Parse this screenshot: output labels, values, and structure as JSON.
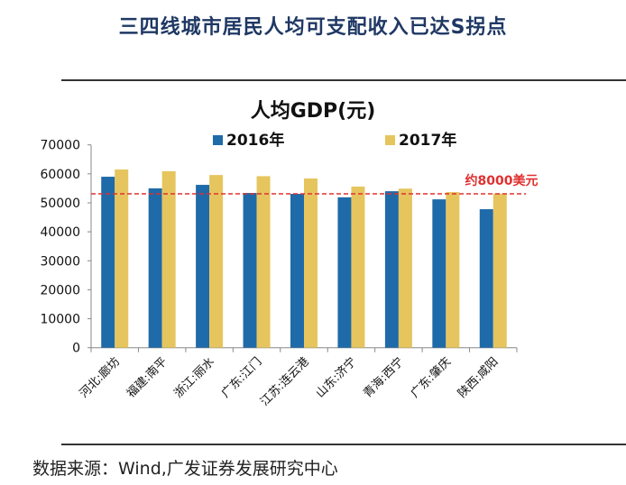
{
  "header": {
    "title": "三四线城市居民人均可支配收入已达S拐点"
  },
  "footer": {
    "source": "数据来源：Wind,广发证券发展研究中心"
  },
  "chart_data": {
    "type": "bar",
    "title": "人均GDP(元)",
    "categories": [
      "河北:廊坊",
      "福建:南平",
      "浙江:丽水",
      "广东:江门",
      "江苏:连云港",
      "山东:济宁",
      "青海:西宁",
      "广东:肇庆",
      "陕西:咸阳"
    ],
    "series": [
      {
        "name": "2016年",
        "color": "#1f6aa8",
        "values": [
          59000,
          55000,
          56200,
          53400,
          53100,
          51900,
          54000,
          51200,
          47800
        ]
      },
      {
        "name": "2017年",
        "color": "#e6c55e",
        "values": [
          61500,
          60900,
          59600,
          59200,
          58400,
          55600,
          54900,
          53700,
          53200
        ]
      }
    ],
    "reference_line": {
      "value": 53100,
      "label": "约8000美元",
      "color": "#e03030",
      "style": "dashed"
    },
    "ylim": [
      0,
      70000
    ],
    "yticks": [
      0,
      10000,
      20000,
      30000,
      40000,
      50000,
      60000,
      70000
    ],
    "grid": false,
    "legend": "top"
  }
}
